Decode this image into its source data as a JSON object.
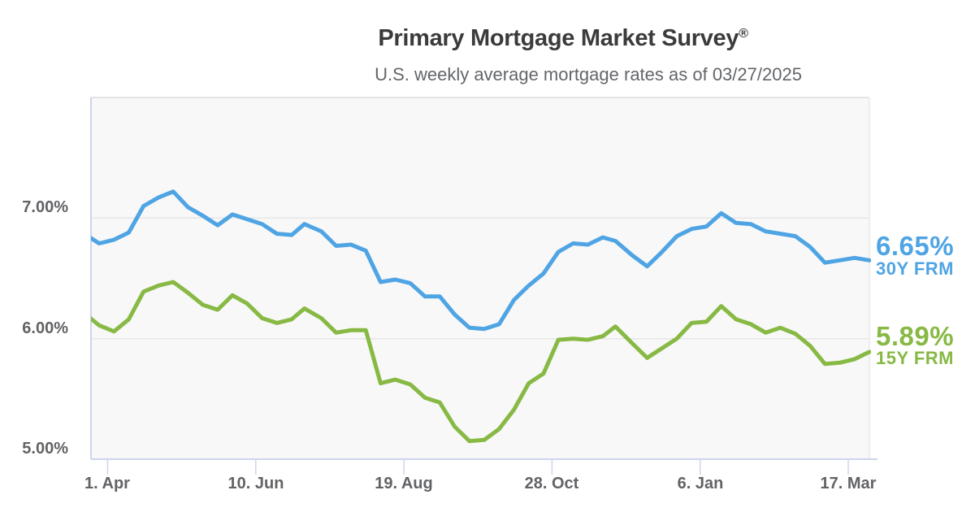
{
  "header": {
    "title": "Primary Mortgage Market Survey",
    "title_regmark": "®",
    "subtitle": "U.S. weekly average mortgage rates as of 03/27/2025"
  },
  "colors": {
    "blue_30y": "#4FA4E4",
    "green_15y": "#87B944",
    "gridline": "#E6E6E6",
    "plot_border": "#E4E4E4",
    "plot_right_border": "#E9E9E9",
    "axis_line": "#CCD6EB",
    "plot_background": "#F8F8F8",
    "axis_label_text": "#626366",
    "title_text": "#3B3B3D",
    "subtitle_text": "#63666A"
  },
  "chart_data": {
    "type": "line",
    "title": "Primary Mortgage Market Survey®",
    "subtitle": "U.S. weekly average mortgage rates as of 03/27/2025",
    "xlabel": "",
    "ylabel": "",
    "grid": true,
    "legend_position": "right-end-labels",
    "x_dates": [
      "2024-03-21",
      "2024-03-28",
      "2024-04-04",
      "2024-04-11",
      "2024-04-18",
      "2024-04-25",
      "2024-05-02",
      "2024-05-09",
      "2024-05-16",
      "2024-05-23",
      "2024-05-30",
      "2024-06-06",
      "2024-06-13",
      "2024-06-20",
      "2024-06-27",
      "2024-07-03",
      "2024-07-11",
      "2024-07-18",
      "2024-07-25",
      "2024-08-01",
      "2024-08-08",
      "2024-08-15",
      "2024-08-22",
      "2024-08-29",
      "2024-09-05",
      "2024-09-12",
      "2024-09-19",
      "2024-09-26",
      "2024-10-03",
      "2024-10-10",
      "2024-10-17",
      "2024-10-24",
      "2024-10-31",
      "2024-11-07",
      "2024-11-14",
      "2024-11-21",
      "2024-11-27",
      "2024-12-05",
      "2024-12-12",
      "2024-12-19",
      "2024-12-26",
      "2025-01-02",
      "2025-01-09",
      "2025-01-16",
      "2025-01-23",
      "2025-01-30",
      "2025-02-06",
      "2025-02-13",
      "2025-02-20",
      "2025-02-27",
      "2025-03-06",
      "2025-03-13",
      "2025-03-20",
      "2025-03-27"
    ],
    "series": [
      {
        "name": "30Y FRM",
        "color": "#4FA4E4",
        "end_label": {
          "rate": "6.65%",
          "name": "30Y FRM"
        },
        "values": [
          6.87,
          6.79,
          6.82,
          6.88,
          7.1,
          7.17,
          7.22,
          7.09,
          7.02,
          6.94,
          7.03,
          6.99,
          6.95,
          6.87,
          6.86,
          6.95,
          6.89,
          6.77,
          6.78,
          6.73,
          6.47,
          6.49,
          6.46,
          6.35,
          6.35,
          6.2,
          6.09,
          6.08,
          6.12,
          6.32,
          6.44,
          6.54,
          6.72,
          6.79,
          6.78,
          6.84,
          6.81,
          6.69,
          6.6,
          6.72,
          6.85,
          6.91,
          6.93,
          7.04,
          6.96,
          6.95,
          6.89,
          6.87,
          6.85,
          6.76,
          6.63,
          6.65,
          6.67,
          6.65
        ]
      },
      {
        "name": "15Y FRM",
        "color": "#87B944",
        "end_label": {
          "rate": "5.89%",
          "name": "15Y FRM"
        },
        "values": [
          6.21,
          6.11,
          6.06,
          6.16,
          6.39,
          6.44,
          6.47,
          6.38,
          6.28,
          6.24,
          6.36,
          6.29,
          6.17,
          6.13,
          6.16,
          6.25,
          6.17,
          6.05,
          6.07,
          6.07,
          5.63,
          5.66,
          5.62,
          5.51,
          5.47,
          5.27,
          5.15,
          5.16,
          5.25,
          5.41,
          5.63,
          5.71,
          5.99,
          6.0,
          5.99,
          6.02,
          6.1,
          5.96,
          5.84,
          5.92,
          6.0,
          6.13,
          6.14,
          6.27,
          6.16,
          6.12,
          6.05,
          6.09,
          6.04,
          5.94,
          5.79,
          5.8,
          5.83,
          5.89
        ]
      }
    ],
    "y_axis": {
      "min": 5.0,
      "max": 8.0,
      "ticks": [
        {
          "label": "7.00%",
          "value": 7.0
        },
        {
          "label": "6.00%",
          "value": 6.0
        },
        {
          "label": "5.00%",
          "value": 5.0
        }
      ]
    },
    "x_axis": {
      "ticks": [
        {
          "label": "1. Apr",
          "date": "2024-04-01"
        },
        {
          "label": "10. Jun",
          "date": "2024-06-10"
        },
        {
          "label": "19. Aug",
          "date": "2024-08-19"
        },
        {
          "label": "28. Oct",
          "date": "2024-10-28"
        },
        {
          "label": "6. Jan",
          "date": "2025-01-06"
        },
        {
          "label": "17. Mar",
          "date": "2025-03-17"
        }
      ]
    }
  }
}
